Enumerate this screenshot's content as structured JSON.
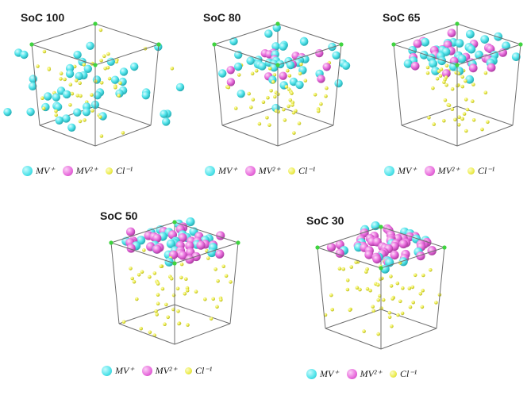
{
  "colors": {
    "mv_plus": "#4fe3ea",
    "mv_2plus": "#e86bdc",
    "cl_minus": "#ecec4a",
    "box_edge": "#6f6f6f",
    "box_corner": "#3fd43f"
  },
  "legend": {
    "mv_plus": "MV⁺",
    "mv_2plus": "MV²⁺",
    "cl_minus": "Cl⁻¹"
  },
  "panels": [
    {
      "title": "SoC 100",
      "mv_plus_fraction": 1.0,
      "mv_2plus_fraction": 0.0,
      "packing": "dispersed"
    },
    {
      "title": "SoC 80",
      "mv_plus_fraction": 0.8,
      "mv_2plus_fraction": 0.2,
      "packing": "upper-cluster"
    },
    {
      "title": "SoC 65",
      "mv_plus_fraction": 0.65,
      "mv_2plus_fraction": 0.35,
      "packing": "top-cluster"
    },
    {
      "title": "SoC 50",
      "mv_plus_fraction": 0.5,
      "mv_2plus_fraction": 0.5,
      "packing": "top-layer"
    },
    {
      "title": "SoC 30",
      "mv_plus_fraction": 0.3,
      "mv_2plus_fraction": 0.7,
      "packing": "top-layer"
    }
  ]
}
